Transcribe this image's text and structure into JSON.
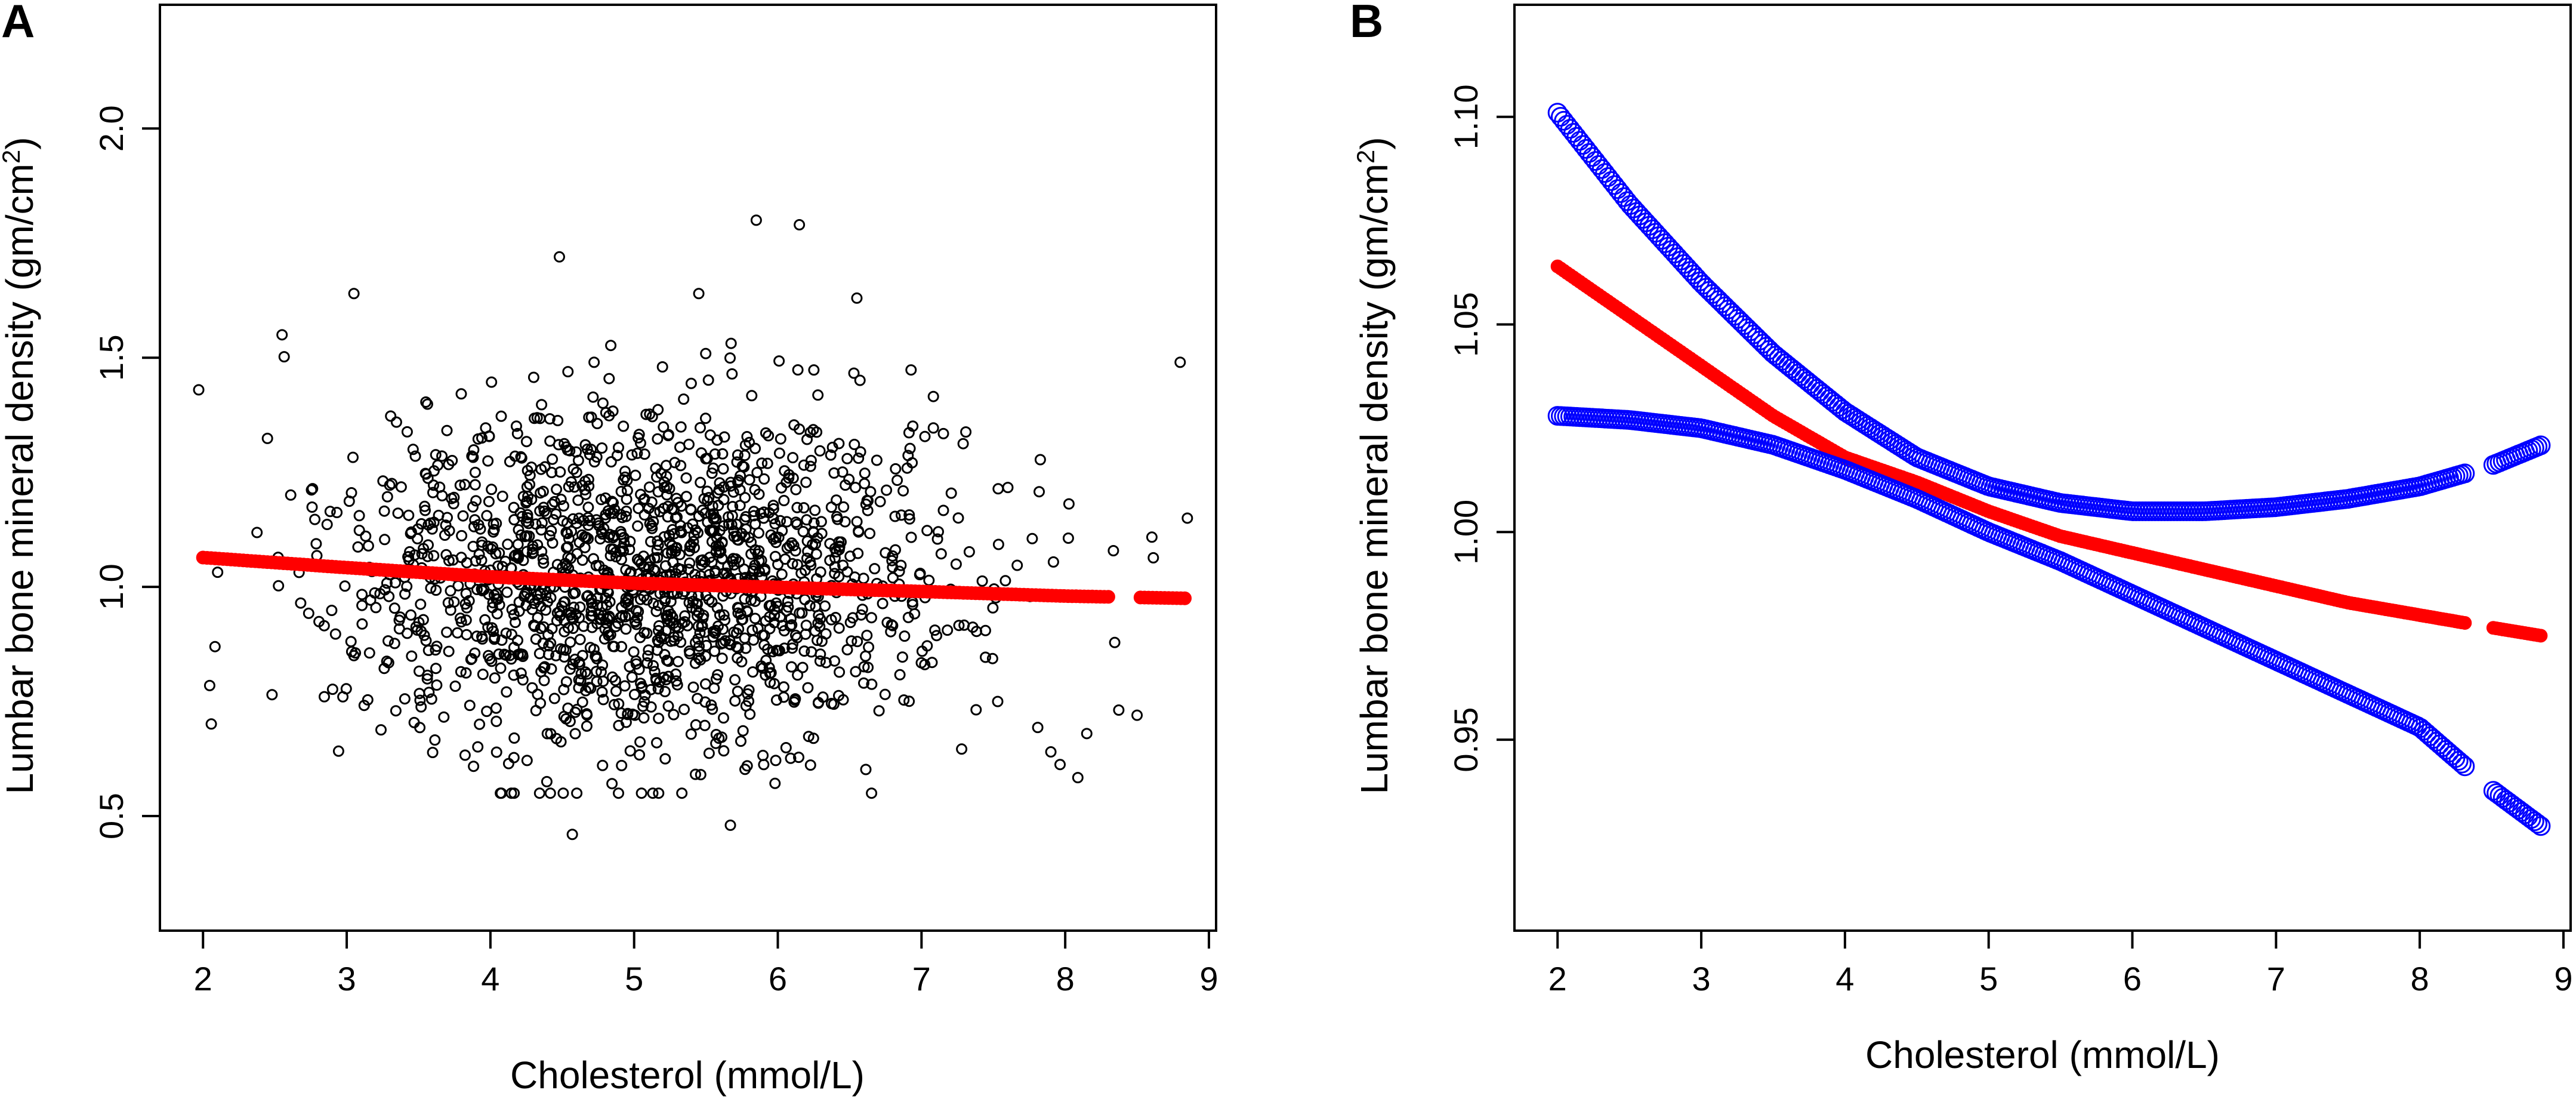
{
  "chart_data": [
    {
      "type": "scatter",
      "panel_label": "A",
      "xlabel": "Cholesterol (mmol/L)",
      "ylabel_main": "Lumbar bone mineral density (gm/cm",
      "ylabel_sup": "2",
      "ylabel_close": ")",
      "xlim": [
        1.7,
        9.05
      ],
      "ylim": [
        0.25,
        2.27
      ],
      "xticks": [
        "2",
        "3",
        "4",
        "5",
        "6",
        "7",
        "8",
        "9"
      ],
      "xtick_values": [
        2,
        3,
        4,
        5,
        6,
        7,
        8,
        9
      ],
      "yticks": [
        "0.5",
        "1.0",
        "1.5",
        "2.0"
      ],
      "ytick_values": [
        0.5,
        1.0,
        1.5,
        2.0
      ],
      "scatter_series": {
        "name": "observations",
        "color": "#000000",
        "n": 1650,
        "seed": 7,
        "x_range": [
          1.98,
          8.85
        ],
        "x_center": 5.1,
        "x_sd": 1.05,
        "y_center": 1.02,
        "y_sd": 0.19,
        "outliers": [
          [
            1.97,
            1.43
          ],
          [
            3.05,
            1.64
          ],
          [
            4.48,
            1.72
          ],
          [
            5.85,
            1.8
          ],
          [
            6.15,
            1.79
          ],
          [
            6.55,
            1.63
          ],
          [
            8.8,
            1.49
          ],
          [
            4.57,
            0.46
          ],
          [
            5.67,
            0.48
          ],
          [
            7.9,
            0.64
          ],
          [
            8.5,
            0.72
          ],
          [
            2.55,
            1.55
          ],
          [
            5.45,
            1.64
          ],
          [
            8.85,
            1.15
          ],
          [
            8.15,
            0.68
          ]
        ]
      },
      "fit_series": {
        "name": "fitted",
        "color": "#ff0000",
        "x": [
          2.0,
          3.0,
          4.0,
          5.0,
          6.0,
          7.0,
          8.0,
          8.85
        ],
        "y": [
          1.064,
          1.042,
          1.022,
          1.008,
          0.999,
          0.99,
          0.98,
          0.975
        ]
      }
    },
    {
      "type": "line",
      "panel_label": "B",
      "xlabel": "Cholesterol (mmol/L)",
      "ylabel_main": "Lumbar bone mineral density (gm/cm",
      "ylabel_sup": "2",
      "ylabel_close": ")",
      "xlim": [
        1.7,
        9.05
      ],
      "ylim": [
        0.904,
        1.127
      ],
      "xticks": [
        "2",
        "3",
        "4",
        "5",
        "6",
        "7",
        "8",
        "9"
      ],
      "xtick_values": [
        2,
        3,
        4,
        5,
        6,
        7,
        8,
        9
      ],
      "yticks": [
        "0.95",
        "1.00",
        "1.05",
        "1.10"
      ],
      "ytick_values": [
        0.95,
        1.0,
        1.05,
        1.1
      ],
      "series": [
        {
          "name": "fitted",
          "color": "#ff0000",
          "marker": "filled",
          "x": [
            2.0,
            2.5,
            3.0,
            3.5,
            4.0,
            4.5,
            5.0,
            5.5,
            6.0,
            6.5,
            7.0,
            7.5,
            8.0,
            8.5,
            8.85
          ],
          "y": [
            1.064,
            1.052,
            1.04,
            1.028,
            1.018,
            1.012,
            1.005,
            0.999,
            0.995,
            0.991,
            0.987,
            0.983,
            0.98,
            0.977,
            0.975
          ]
        },
        {
          "name": "upper 95% CI",
          "color": "#0000ff",
          "marker": "open",
          "x": [
            2.0,
            2.5,
            3.0,
            3.5,
            4.0,
            4.5,
            5.0,
            5.5,
            6.0,
            6.5,
            7.0,
            7.5,
            8.0,
            8.5,
            8.85
          ],
          "y": [
            1.101,
            1.079,
            1.06,
            1.043,
            1.029,
            1.018,
            1.011,
            1.007,
            1.005,
            1.005,
            1.006,
            1.008,
            1.011,
            1.016,
            1.021
          ]
        },
        {
          "name": "lower 95% CI",
          "color": "#0000ff",
          "marker": "open",
          "x": [
            2.0,
            2.5,
            3.0,
            3.5,
            4.0,
            4.5,
            5.0,
            5.5,
            6.0,
            6.5,
            7.0,
            7.5,
            8.0,
            8.5,
            8.85
          ],
          "y": [
            1.028,
            1.027,
            1.025,
            1.021,
            1.015,
            1.008,
            1.0,
            0.993,
            0.985,
            0.977,
            0.969,
            0.961,
            0.953,
            0.938,
            0.929
          ]
        }
      ]
    }
  ]
}
